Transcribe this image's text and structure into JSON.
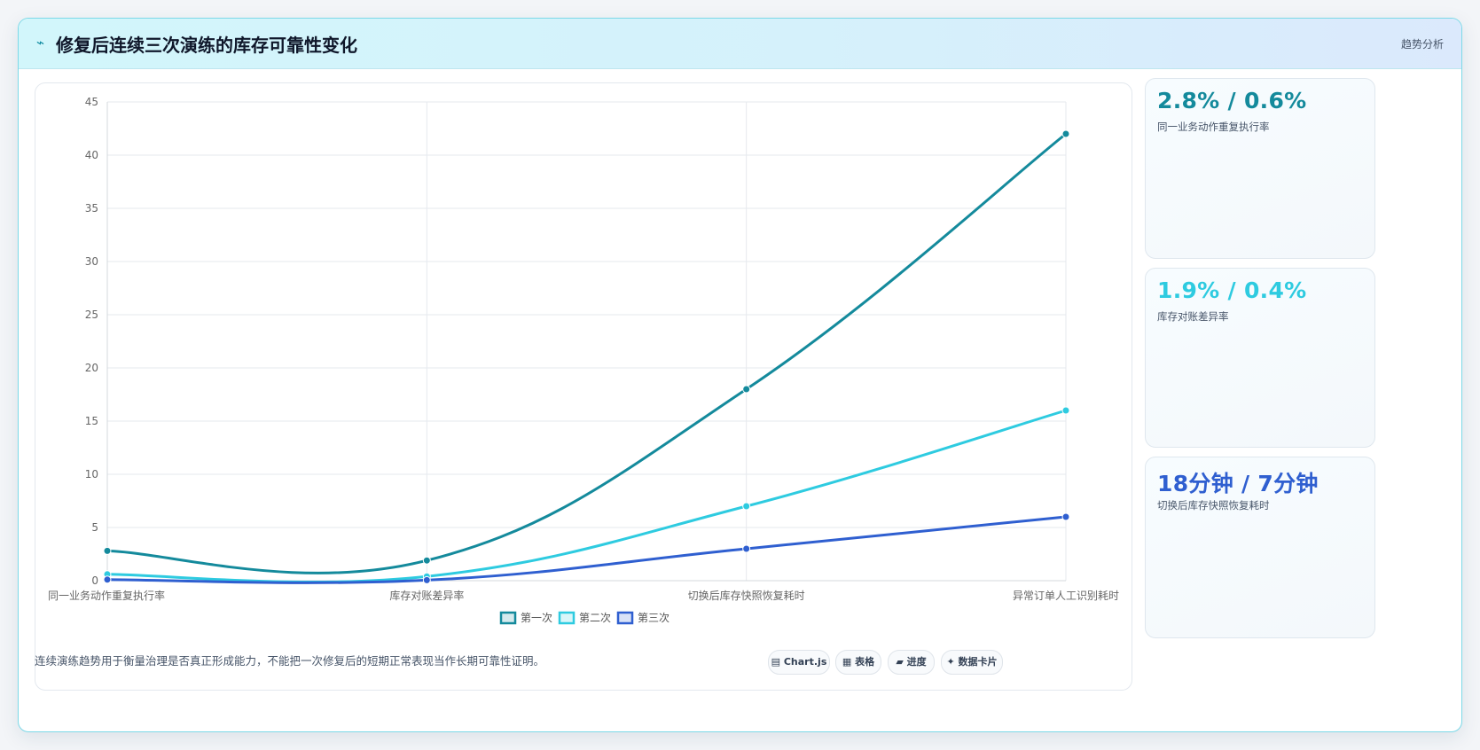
{
  "header": {
    "icon": "⌁",
    "title": "修复后连续三次演练的库存可靠性变化",
    "badge": "趋势分析"
  },
  "chart_data": {
    "type": "line",
    "categories": [
      "同一业务动作重复执行率",
      "库存对账差异率",
      "切换后库存快照恢复耗时",
      "异常订单人工识别耗时"
    ],
    "series": [
      {
        "name": "第一次",
        "values": [
          2.8,
          1.9,
          18,
          42
        ],
        "color": "#148a9c"
      },
      {
        "name": "第二次",
        "values": [
          0.6,
          0.4,
          7,
          16
        ],
        "color": "#2ecbe0"
      },
      {
        "name": "第三次",
        "values": [
          0.1,
          0.05,
          3,
          6
        ],
        "color": "#2f5fd0"
      }
    ],
    "ylim": [
      0,
      45
    ],
    "yticks": [
      "0",
      "5",
      "10",
      "15",
      "20",
      "25",
      "30",
      "35",
      "40",
      "45"
    ],
    "grid": true,
    "legend": "bottom"
  },
  "stats": [
    {
      "value": "2.8% / 0.6%",
      "label": "同一业务动作重复执行率",
      "color": "#148a9c"
    },
    {
      "value": "1.9% / 0.4%",
      "label": "库存对账差异率",
      "color": "#2ecbe0"
    },
    {
      "value": "18分钟 / 7分钟",
      "label": "切换后库存快照恢复耗时",
      "color": "#2f5fd0"
    }
  ],
  "footer": {
    "note": "连续演练趋势用于衡量治理是否真正形成能力，不能把一次修复后的短期正常表现当作长期可靠性证明。",
    "pills": [
      {
        "icon": "▤",
        "label": "Chart.js"
      },
      {
        "icon": "▦",
        "label": "表格"
      },
      {
        "icon": "▰",
        "label": "进度"
      },
      {
        "icon": "✦",
        "label": "数据卡片"
      }
    ]
  }
}
